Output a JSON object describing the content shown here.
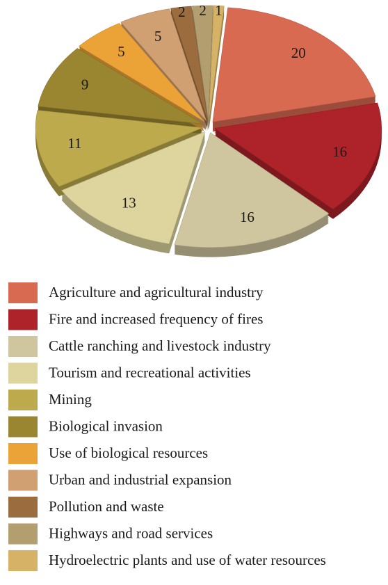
{
  "chart_data": {
    "type": "pie",
    "categories": [
      "Agriculture and agricultural industry",
      "Fire and increased frequency of fires",
      "Cattle ranching and livestock industry",
      "Tourism and recreational activities",
      "Mining",
      "Biological invasion",
      "Use of biological resources",
      "Urban and industrial expansion",
      "Pollution and waste",
      "Highways and road services",
      "Hydroelectric plants and use of water resources"
    ],
    "values": [
      20,
      16,
      16,
      13,
      11,
      9,
      5,
      5,
      2,
      2,
      1
    ],
    "colors": [
      "#d96a52",
      "#ad2329",
      "#cfc59e",
      "#ddd49e",
      "#bdaa4c",
      "#9a8530",
      "#eba236",
      "#d09f72",
      "#9b6c3e",
      "#b39e70",
      "#d6b267"
    ]
  }
}
